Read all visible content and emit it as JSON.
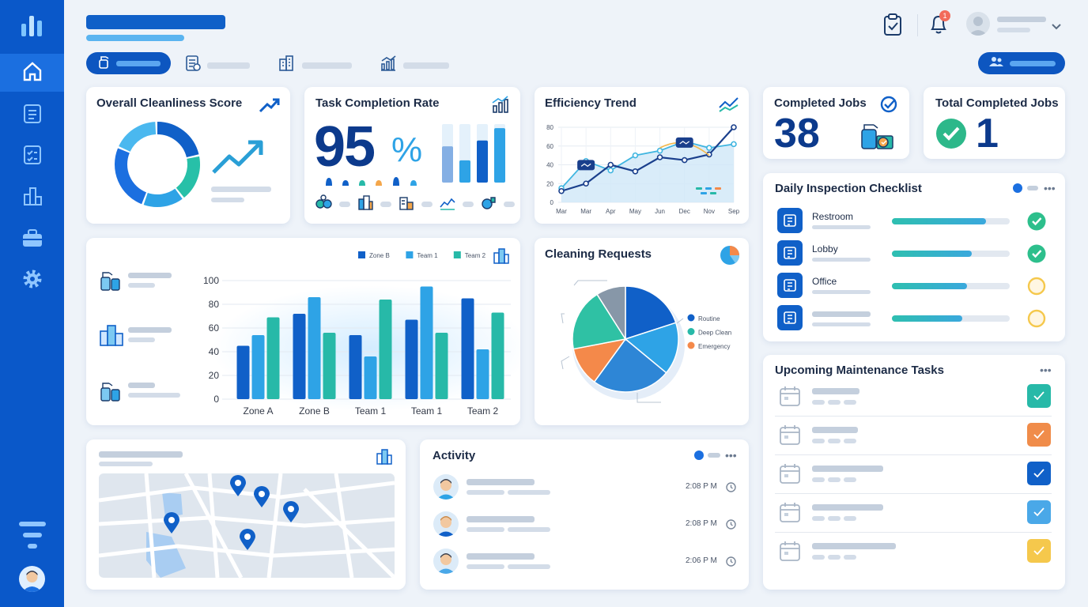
{
  "colors": {
    "sidebar": "#0a58c9",
    "accent": "#1b6fe0",
    "teal": "#27b9a8",
    "light_blue": "#4aa8e8",
    "orange": "#f08c4a",
    "yellow": "#f5c84c",
    "green": "#2db88a"
  },
  "header": {
    "notification_count": "1"
  },
  "sidebar": {
    "items": [
      {
        "icon": "home-icon"
      },
      {
        "icon": "clipboard-icon"
      },
      {
        "icon": "checklist-icon"
      },
      {
        "icon": "building-icon"
      },
      {
        "icon": "briefcase-icon"
      },
      {
        "icon": "gear-icon"
      }
    ]
  },
  "score_card": {
    "title": "Overall Cleanliness Score",
    "donut_values": [
      22,
      18,
      16,
      26,
      18
    ]
  },
  "task_card": {
    "title": "Task Completion Rate",
    "value": "95",
    "unit": "%",
    "bar_levels": [
      0.62,
      0.38,
      0.72,
      0.93
    ]
  },
  "efficiency_card": {
    "title": "Efficiency Trend"
  },
  "completed_card": {
    "title": "Completed Jobs",
    "value": "38"
  },
  "total_card": {
    "title": "Total Completed Jobs",
    "value": "1"
  },
  "checklist": {
    "title": "Daily Inspection Checklist",
    "items": [
      {
        "label": "Restroom",
        "progress": 0.8,
        "status": "done"
      },
      {
        "label": "Lobby",
        "progress": 0.68,
        "status": "done"
      },
      {
        "label": "Office",
        "progress": 0.64,
        "status": "pending"
      },
      {
        "label": "",
        "progress": 0.6,
        "status": "pending"
      }
    ]
  },
  "cleaning_requests": {
    "title": "Cleaning Requests",
    "legend": [
      "Routine",
      "Deep Clean",
      "Emergency"
    ]
  },
  "maintenance": {
    "title": "Upcoming Maintenance Tasks",
    "rows": [
      {
        "color": "#27b9a8"
      },
      {
        "color": "#f08c4a"
      },
      {
        "color": "#1060c8"
      },
      {
        "color": "#4aa8e8"
      },
      {
        "color": "#f5c84c"
      }
    ]
  },
  "activity": {
    "title": "Activity",
    "items": [
      {
        "time": "2:08 P M"
      },
      {
        "time": "2:08 P M"
      },
      {
        "time": "2:06 P M"
      }
    ]
  },
  "chart_data": [
    {
      "type": "line",
      "title": "Efficiency Trend",
      "x": [
        "Mar",
        "Mar",
        "Apr",
        "May",
        "Jun",
        "Dec",
        "Nov",
        "Sep"
      ],
      "x_tick_labels": [
        "Mar",
        "Mar",
        "Apr",
        "May",
        "Jun",
        "Dec",
        "Nov",
        "Sep"
      ],
      "ylim": [
        0,
        80
      ],
      "y_ticks": [
        0,
        20,
        40,
        60,
        80
      ],
      "grid": true,
      "series": [
        {
          "values": [
            15,
            44,
            34,
            50,
            55,
            65,
            58,
            62
          ]
        },
        {
          "values": [
            12,
            20,
            40,
            33,
            48,
            45,
            51,
            80
          ]
        }
      ]
    },
    {
      "type": "bar",
      "categories": [
        "Zone A",
        "Zone B",
        "Team 1",
        "Team 1",
        "Team 2"
      ],
      "ylim": [
        0,
        100
      ],
      "y_ticks": [
        0,
        20,
        40,
        60,
        80,
        100
      ],
      "legend_position": "top-right",
      "series": [
        {
          "name": "Zone B",
          "values": [
            45,
            72,
            54,
            67,
            85
          ]
        },
        {
          "name": "Team 1",
          "values": [
            54,
            86,
            36,
            95,
            42
          ]
        },
        {
          "name": "Team 2",
          "values": [
            69,
            56,
            84,
            56,
            73
          ]
        }
      ]
    },
    {
      "type": "pie",
      "title": "Cleaning Requests",
      "legend": [
        "Routine",
        "Deep Clean",
        "Emergency"
      ],
      "values": [
        20,
        16,
        24,
        12,
        19,
        9
      ],
      "colors": [
        "#1060c8",
        "#2ea3e6",
        "#2e86d6",
        "#f4894a",
        "#2fc1a4",
        "#8797a8"
      ]
    }
  ]
}
